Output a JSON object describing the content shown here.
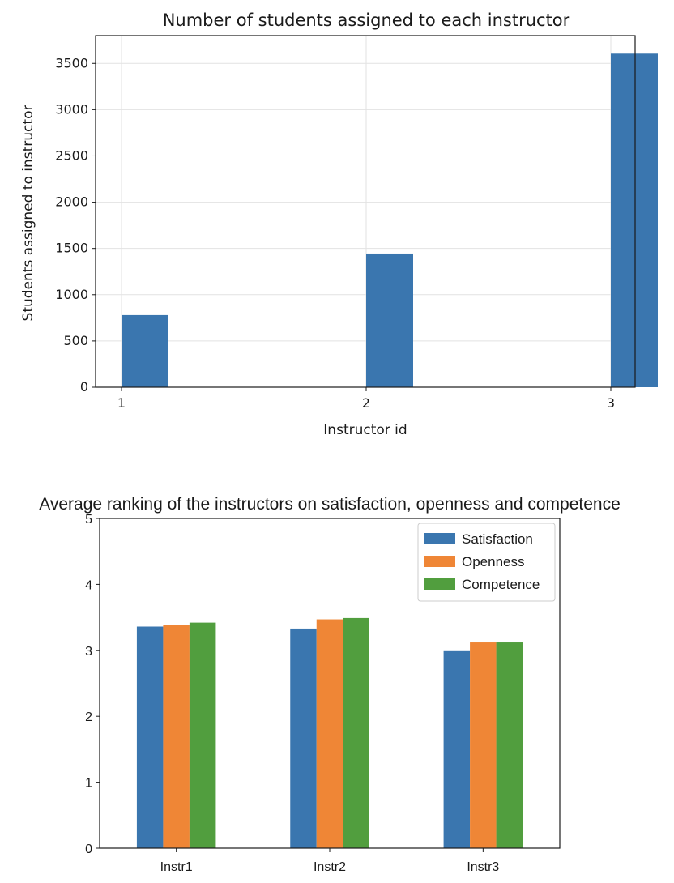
{
  "chart_data": [
    {
      "type": "bar",
      "title": "Number of students assigned to each instructor",
      "xlabel": "Instructor id",
      "ylabel": "Students assigned to instructor",
      "categories": [
        "1",
        "2",
        "3"
      ],
      "values": [
        780,
        1445,
        3605
      ],
      "ylim": [
        0,
        3800
      ],
      "yticks": [
        0,
        500,
        1000,
        1500,
        2000,
        2500,
        3000,
        3500
      ],
      "grid": true,
      "color": "#3a76af"
    },
    {
      "type": "bar",
      "title": "Average ranking of the instructors on satisfaction, openness and competence",
      "xlabel": "",
      "ylabel": "",
      "categories": [
        "Instr1",
        "Instr2",
        "Instr3"
      ],
      "ylim": [
        0,
        5
      ],
      "yticks": [
        0,
        1,
        2,
        3,
        4,
        5
      ],
      "grid": false,
      "legend_position": "top-right",
      "series": [
        {
          "name": "Satisfaction",
          "values": [
            3.36,
            3.33,
            3.0
          ],
          "color": "#3a76af"
        },
        {
          "name": "Openness",
          "values": [
            3.38,
            3.47,
            3.12
          ],
          "color": "#ef8636"
        },
        {
          "name": "Competence",
          "values": [
            3.42,
            3.49,
            3.12
          ],
          "color": "#519e3e"
        }
      ]
    }
  ]
}
